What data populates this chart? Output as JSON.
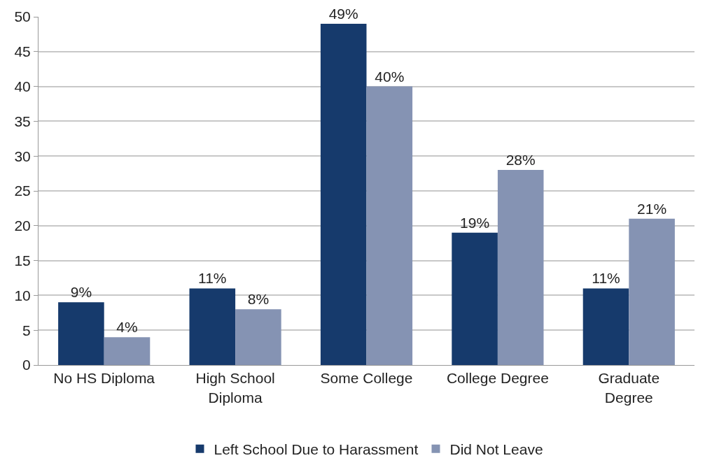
{
  "chart_data": {
    "type": "bar",
    "categories": [
      "No HS Diploma",
      "High School Diploma",
      "Some College",
      "College Degree",
      "Graduate Degree"
    ],
    "series": [
      {
        "name": "Left School Due to Harassment",
        "color": "#163a6c",
        "values": [
          9,
          11,
          49,
          19,
          11
        ],
        "value_labels": [
          "9%",
          "11%",
          "49%",
          "19%",
          "11%"
        ]
      },
      {
        "name": "Did Not Leave",
        "color": "#8593b3",
        "values": [
          4,
          8,
          40,
          28,
          21
        ],
        "value_labels": [
          "4%",
          "8%",
          "40%",
          "28%",
          "21%"
        ]
      }
    ],
    "ylim": [
      0,
      50
    ],
    "yticks": [
      0,
      5,
      10,
      15,
      20,
      25,
      30,
      35,
      40,
      45,
      50
    ],
    "grid": "y",
    "legend": "bottom"
  }
}
